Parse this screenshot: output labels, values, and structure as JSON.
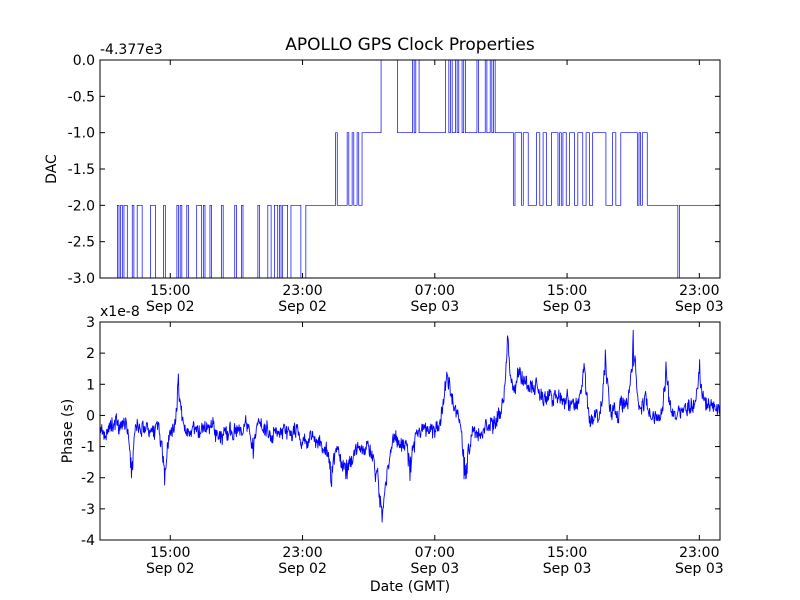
{
  "title": "APOLLO GPS Clock Properties",
  "chart_data": [
    {
      "type": "line",
      "ylabel": "DAC",
      "offset_label": "-4.377e3",
      "xlim": [
        "2010-09-02 10:45",
        "2010-09-04 00:15"
      ],
      "ylim": [
        -3.0,
        0.0
      ],
      "y_ticks": [
        "0.0",
        "-0.5",
        "-1.0",
        "-1.5",
        "-2.0",
        "-2.5",
        "-3.0"
      ],
      "x_ticks": [
        {
          "time": "2010-09-02 15:00",
          "line1": "15:00",
          "line2": "Sep 02"
        },
        {
          "time": "2010-09-02 23:00",
          "line1": "23:00",
          "line2": "Sep 02"
        },
        {
          "time": "2010-09-03 07:00",
          "line1": "07:00",
          "line2": "Sep 03"
        },
        {
          "time": "2010-09-03 15:00",
          "line1": "15:00",
          "line2": "Sep 03"
        },
        {
          "time": "2010-09-03 23:00",
          "line1": "23:00",
          "line2": "Sep 03"
        }
      ],
      "series": [
        {
          "color": "#0000ff",
          "segments": [
            {
              "start": "2010-09-02 10:45",
              "end": "2010-09-02 11:30",
              "base": -3.0,
              "toggle": -2.0,
              "rate": 0.3
            },
            {
              "start": "2010-09-02 11:30",
              "end": "2010-09-02 14:30",
              "base": -3.0,
              "toggle": -2.0,
              "rate": 0.75
            },
            {
              "start": "2010-09-02 14:30",
              "end": "2010-09-02 21:00",
              "base": -3.0,
              "toggle": -2.0,
              "rate": 0.55
            },
            {
              "start": "2010-09-02 21:00",
              "end": "2010-09-02 23:45",
              "base": -2.0,
              "toggle": -3.0,
              "rate": 0.65
            },
            {
              "start": "2010-09-02 23:45",
              "end": "2010-09-03 01:00",
              "base": -2.0,
              "toggle": -1.0,
              "rate": 0.15
            },
            {
              "start": "2010-09-03 01:00",
              "end": "2010-09-03 03:00",
              "base": -2.0,
              "toggle": -1.0,
              "rate": 0.65
            },
            {
              "start": "2010-09-03 03:00",
              "end": "2010-09-03 03:45",
              "base": -1.0,
              "toggle": 0.0,
              "rate": 0.25
            },
            {
              "start": "2010-09-03 03:45",
              "end": "2010-09-03 04:45",
              "base": 0.0,
              "toggle": -1.0,
              "rate": 0.05
            },
            {
              "start": "2010-09-03 04:45",
              "end": "2010-09-03 06:45",
              "base": -1.0,
              "toggle": 0.0,
              "rate": 0.5
            },
            {
              "start": "2010-09-03 06:45",
              "end": "2010-09-03 07:15",
              "base": -1.0,
              "toggle": -2.0,
              "rate": 0.45
            },
            {
              "start": "2010-09-03 07:15",
              "end": "2010-09-03 10:45",
              "base": -1.0,
              "toggle": 0.0,
              "rate": 0.8
            },
            {
              "start": "2010-09-03 10:45",
              "end": "2010-09-03 11:45",
              "base": -1.0,
              "toggle": -2.0,
              "rate": 0.2
            },
            {
              "start": "2010-09-03 11:45",
              "end": "2010-09-03 20:00",
              "base": -1.0,
              "toggle": -2.0,
              "rate": 0.95
            },
            {
              "start": "2010-09-03 20:00",
              "end": "2010-09-03 23:45",
              "base": -2.0,
              "toggle": -3.0,
              "rate": 0.1
            },
            {
              "start": "2010-09-03 23:45",
              "end": "2010-09-04 00:15",
              "base": -2.0,
              "toggle": -2.0,
              "rate": 0.0
            }
          ]
        }
      ]
    },
    {
      "type": "line",
      "ylabel": "Phase (s)",
      "xlabel": "Date (GMT)",
      "offset_label": "x1e-8",
      "xlim": [
        "2010-09-02 10:45",
        "2010-09-04 00:15"
      ],
      "ylim": [
        -4,
        3
      ],
      "y_ticks": [
        "3",
        "2",
        "1",
        "0",
        "-1",
        "-2",
        "-3",
        "-4"
      ],
      "x_ticks": [
        {
          "time": "2010-09-02 15:00",
          "line1": "15:00",
          "line2": "Sep 02"
        },
        {
          "time": "2010-09-02 23:00",
          "line1": "23:00",
          "line2": "Sep 02"
        },
        {
          "time": "2010-09-03 07:00",
          "line1": "07:00",
          "line2": "Sep 03"
        },
        {
          "time": "2010-09-03 15:00",
          "line1": "15:00",
          "line2": "Sep 03"
        },
        {
          "time": "2010-09-03 23:00",
          "line1": "23:00",
          "line2": "Sep 03"
        }
      ],
      "series": [
        {
          "color": "#0000ff",
          "trend": [
            [
              "2010-09-02 10:45",
              -0.5
            ],
            [
              "2010-09-02 12:00",
              -0.3
            ],
            [
              "2010-09-02 14:00",
              -0.4
            ],
            [
              "2010-09-02 16:00",
              -0.5
            ],
            [
              "2010-09-02 18:00",
              -0.5
            ],
            [
              "2010-09-02 20:00",
              -0.4
            ],
            [
              "2010-09-02 22:00",
              -0.5
            ],
            [
              "2010-09-03 00:00",
              -0.9
            ],
            [
              "2010-09-03 01:30",
              -1.3
            ],
            [
              "2010-09-03 03:00",
              -1.0
            ],
            [
              "2010-09-03 03:45",
              -2.4
            ],
            [
              "2010-09-03 04:30",
              -1.0
            ],
            [
              "2010-09-03 06:00",
              -0.7
            ],
            [
              "2010-09-03 07:00",
              -0.6
            ],
            [
              "2010-09-03 07:45",
              0.5
            ],
            [
              "2010-09-03 08:30",
              -0.2
            ],
            [
              "2010-09-03 09:15",
              -0.7
            ],
            [
              "2010-09-03 10:30",
              -0.3
            ],
            [
              "2010-09-03 11:00",
              0.3
            ],
            [
              "2010-09-03 12:00",
              1.1
            ],
            [
              "2010-09-03 13:00",
              0.9
            ],
            [
              "2010-09-03 14:00",
              0.6
            ],
            [
              "2010-09-03 15:00",
              0.5
            ],
            [
              "2010-09-03 16:00",
              0.1
            ],
            [
              "2010-09-03 17:00",
              0.2
            ],
            [
              "2010-09-03 18:00",
              0.3
            ],
            [
              "2010-09-03 19:00",
              0.6
            ],
            [
              "2010-09-03 20:00",
              0.3
            ],
            [
              "2010-09-03 21:00",
              -0.2
            ],
            [
              "2010-09-03 22:00",
              0.2
            ],
            [
              "2010-09-03 23:00",
              0.5
            ],
            [
              "2010-09-04 00:15",
              0.2
            ]
          ],
          "spikes": [
            [
              "2010-09-02 12:40",
              -2.2
            ],
            [
              "2010-09-02 14:40",
              -2.2
            ],
            [
              "2010-09-02 15:30",
              1.2
            ],
            [
              "2010-09-02 20:00",
              -1.6
            ],
            [
              "2010-09-03 00:45",
              -2.3
            ],
            [
              "2010-09-03 01:45",
              -2.2
            ],
            [
              "2010-09-03 03:50",
              -3.15
            ],
            [
              "2010-09-03 05:30",
              -2.6
            ],
            [
              "2010-09-03 07:45",
              1.2
            ],
            [
              "2010-09-03 08:50",
              -2.6
            ],
            [
              "2010-09-03 11:25",
              2.75
            ],
            [
              "2010-09-03 12:00",
              1.6
            ],
            [
              "2010-09-03 16:00",
              1.9
            ],
            [
              "2010-09-03 17:20",
              2.3
            ],
            [
              "2010-09-03 19:00",
              2.6
            ],
            [
              "2010-09-03 21:00",
              1.9
            ],
            [
              "2010-09-03 23:00",
              1.6
            ]
          ],
          "noise": 0.4
        }
      ]
    }
  ]
}
